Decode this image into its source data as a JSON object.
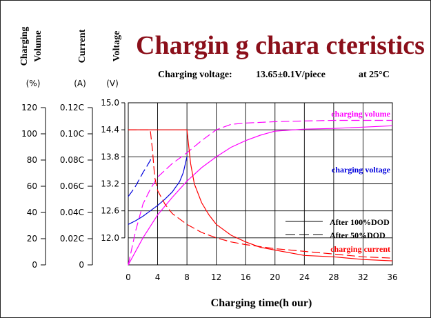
{
  "chart_data": {
    "type": "line",
    "title": "Chargin g chara cteristics",
    "subtitle": {
      "label": "Charging voltage:",
      "value": "13.65±0.1V/piece",
      "condition": "at 25°C"
    },
    "xlabel": "Charging time(h   our)",
    "x_ticks": [
      "0",
      "4",
      "8",
      "12",
      "16",
      "20",
      "24",
      "28",
      "32",
      "36"
    ],
    "xlim": [
      0,
      36
    ],
    "y_axes": [
      {
        "label": "Charging Volume",
        "label_lines": [
          "Charging",
          "Volume"
        ],
        "unit": "(%)",
        "ticks": [
          "0",
          "20",
          "40",
          "60",
          "80",
          "100",
          "120"
        ],
        "range": [
          0,
          120
        ]
      },
      {
        "label": "Current",
        "label_lines": [
          "Current"
        ],
        "unit": "(A)",
        "ticks": [
          "0",
          "0.02C",
          "0.04C",
          "0.06C",
          "0.08C",
          "0.10C",
          "0.12C"
        ],
        "range": [
          0,
          0.12
        ]
      },
      {
        "label": "Voltage",
        "label_lines": [
          "Voltage"
        ],
        "unit": "(V)",
        "ticks": [
          "12.0",
          "12.6",
          "13.2",
          "13.8",
          "14.4",
          "15.0"
        ],
        "tick_values": [
          12.0,
          12.6,
          13.2,
          13.8,
          14.4,
          15.0
        ],
        "range": [
          11.4,
          15.0
        ]
      }
    ],
    "grid": true,
    "legend": {
      "placement": "bottom-right",
      "entries": [
        {
          "label": "After 100%DOD",
          "style": "solid"
        },
        {
          "label": "After 50%DOD",
          "style": "dashed"
        }
      ]
    },
    "series": [
      {
        "name": "charging volume",
        "axis": "Charging Volume",
        "color": "#ff00ff",
        "style": "solid",
        "x": [
          0,
          2,
          4,
          6,
          8,
          10,
          12,
          14,
          16,
          18,
          20,
          24,
          28,
          32,
          36
        ],
        "y": [
          0,
          20,
          37,
          50,
          62,
          72,
          80,
          87,
          92,
          96,
          99,
          100.5,
          101,
          102,
          103
        ]
      },
      {
        "name": "charging volume",
        "axis": "Charging Volume",
        "color": "#ff00ff",
        "style": "dashed",
        "x": [
          0,
          1,
          2,
          3,
          4,
          6,
          8,
          10,
          12,
          14,
          16,
          20,
          24,
          28,
          32,
          36
        ],
        "y": [
          0,
          25,
          45,
          56,
          65,
          75,
          83,
          92,
          100,
          104,
          105,
          106,
          106.5,
          107,
          107,
          107
        ]
      },
      {
        "name": "charging voltage",
        "axis": "Voltage",
        "color": "#0000dd",
        "style": "solid",
        "x": [
          0,
          1,
          2,
          3,
          4,
          5,
          6,
          7,
          7.5,
          8
        ],
        "y": [
          12.3,
          12.38,
          12.48,
          12.6,
          12.72,
          12.86,
          13.02,
          13.25,
          13.45,
          13.8
        ]
      },
      {
        "name": "charging voltage",
        "axis": "Voltage",
        "color": "#0000dd",
        "style": "dashed",
        "x": [
          0,
          0.5,
          1,
          1.5,
          2,
          2.5,
          3,
          3.2
        ],
        "y": [
          12.92,
          13.03,
          13.15,
          13.3,
          13.45,
          13.58,
          13.72,
          13.82
        ]
      },
      {
        "name": "charging current",
        "axis": "Current",
        "color": "#ff0000",
        "style": "solid",
        "x": [
          0,
          8,
          8.5,
          9,
          10,
          11,
          12,
          14,
          16,
          18,
          20,
          24,
          28,
          32,
          36
        ],
        "y": [
          0.1,
          0.1,
          0.075,
          0.06,
          0.046,
          0.037,
          0.03,
          0.022,
          0.017,
          0.013,
          0.011,
          0.007,
          0.006,
          0.004,
          0.003
        ]
      },
      {
        "name": "charging current",
        "axis": "Current",
        "color": "#ff0000",
        "style": "dashed",
        "x": [
          0,
          3,
          3.3,
          3.6,
          4,
          5,
          6,
          8,
          10,
          12,
          14,
          16,
          20,
          24,
          28,
          32,
          36
        ],
        "y": [
          0.1,
          0.1,
          0.085,
          0.065,
          0.055,
          0.045,
          0.038,
          0.03,
          0.024,
          0.02,
          0.017,
          0.015,
          0.012,
          0.01,
          0.008,
          0.006,
          0.005
        ]
      }
    ],
    "annotations": [
      {
        "text": "charging volume",
        "series": "charging volume",
        "color": "#ff00ff"
      },
      {
        "text": "charging voltage",
        "series": "charging voltage",
        "color": "#0000dd"
      },
      {
        "text": "charging current",
        "series": "charging current",
        "color": "#ff0000"
      }
    ]
  }
}
